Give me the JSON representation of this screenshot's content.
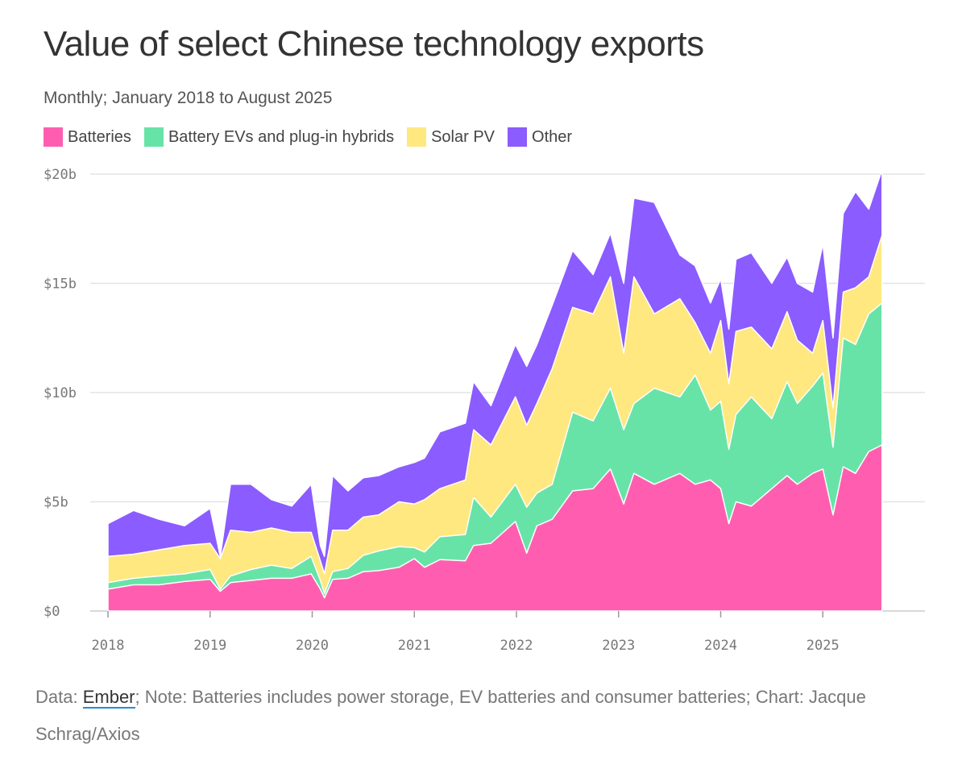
{
  "title": "Value of select Chinese technology exports",
  "subtitle": "Monthly; January 2018 to August 2025",
  "footer": {
    "prefix": "Data: ",
    "source_link": "Ember",
    "rest": "; Note: Batteries includes power storage, EV batteries and consumer batteries; Chart: Jacque Schrag/Axios"
  },
  "chart_data": {
    "type": "area",
    "stacked": true,
    "title": "Value of select Chinese technology exports",
    "subtitle": "Monthly; January 2018 to August 2025",
    "x_range": [
      "2018-01",
      "2025-08"
    ],
    "y_range": [
      0,
      20
    ],
    "y_unit": "$ billion",
    "y_ticks": [
      "$0",
      "$5b",
      "$10b",
      "$15b",
      "$20b"
    ],
    "y_tick_values": [
      0,
      5,
      10,
      15,
      20
    ],
    "x_ticks": [
      "2018",
      "2019",
      "2020",
      "2021",
      "2022",
      "2023",
      "2024",
      "2025"
    ],
    "x_tick_values": [
      2018,
      2019,
      2020,
      2021,
      2022,
      2023,
      2024,
      2025
    ],
    "grid": true,
    "legend_position": "top-left",
    "series": [
      {
        "name": "Batteries",
        "color": "#ff5eb0",
        "points": [
          [
            2018.0,
            1.0
          ],
          [
            2018.25,
            1.2
          ],
          [
            2018.5,
            1.2
          ],
          [
            2018.75,
            1.35
          ],
          [
            2019.0,
            1.45
          ],
          [
            2019.1,
            0.9
          ],
          [
            2019.2,
            1.3
          ],
          [
            2019.4,
            1.4
          ],
          [
            2019.6,
            1.5
          ],
          [
            2019.8,
            1.5
          ],
          [
            2019.99,
            1.7
          ],
          [
            2020.08,
            1.0
          ],
          [
            2020.12,
            0.6
          ],
          [
            2020.2,
            1.45
          ],
          [
            2020.35,
            1.5
          ],
          [
            2020.5,
            1.8
          ],
          [
            2020.65,
            1.85
          ],
          [
            2020.85,
            2.0
          ],
          [
            2021.0,
            2.4
          ],
          [
            2021.1,
            2.0
          ],
          [
            2021.25,
            2.35
          ],
          [
            2021.5,
            2.3
          ],
          [
            2021.58,
            3.0
          ],
          [
            2021.75,
            3.1
          ],
          [
            2021.99,
            4.1
          ],
          [
            2022.1,
            2.65
          ],
          [
            2022.2,
            3.9
          ],
          [
            2022.35,
            4.2
          ],
          [
            2022.55,
            5.5
          ],
          [
            2022.75,
            5.6
          ],
          [
            2022.92,
            6.5
          ],
          [
            2023.05,
            4.9
          ],
          [
            2023.15,
            6.3
          ],
          [
            2023.35,
            5.8
          ],
          [
            2023.6,
            6.3
          ],
          [
            2023.75,
            5.8
          ],
          [
            2023.9,
            6.0
          ],
          [
            2024.0,
            5.6
          ],
          [
            2024.08,
            4.0
          ],
          [
            2024.15,
            5.0
          ],
          [
            2024.3,
            4.8
          ],
          [
            2024.5,
            5.6
          ],
          [
            2024.65,
            6.2
          ],
          [
            2024.75,
            5.8
          ],
          [
            2024.9,
            6.3
          ],
          [
            2025.0,
            6.5
          ],
          [
            2025.1,
            4.4
          ],
          [
            2025.2,
            6.6
          ],
          [
            2025.32,
            6.3
          ],
          [
            2025.45,
            7.3
          ],
          [
            2025.58,
            7.6
          ]
        ]
      },
      {
        "name": "Battery EVs and plug-in hybrids",
        "color": "#68e3a8",
        "points": [
          [
            2018.0,
            1.3
          ],
          [
            2018.25,
            1.5
          ],
          [
            2018.5,
            1.6
          ],
          [
            2018.75,
            1.7
          ],
          [
            2019.0,
            1.9
          ],
          [
            2019.1,
            1.0
          ],
          [
            2019.2,
            1.6
          ],
          [
            2019.4,
            1.9
          ],
          [
            2019.6,
            2.1
          ],
          [
            2019.8,
            1.95
          ],
          [
            2019.99,
            2.5
          ],
          [
            2020.08,
            1.4
          ],
          [
            2020.12,
            0.8
          ],
          [
            2020.2,
            1.8
          ],
          [
            2020.35,
            1.95
          ],
          [
            2020.5,
            2.55
          ],
          [
            2020.65,
            2.75
          ],
          [
            2020.85,
            2.95
          ],
          [
            2021.0,
            2.9
          ],
          [
            2021.1,
            2.7
          ],
          [
            2021.25,
            3.4
          ],
          [
            2021.5,
            3.5
          ],
          [
            2021.58,
            5.2
          ],
          [
            2021.75,
            4.3
          ],
          [
            2021.99,
            5.8
          ],
          [
            2022.1,
            4.75
          ],
          [
            2022.2,
            5.4
          ],
          [
            2022.35,
            5.8
          ],
          [
            2022.55,
            9.1
          ],
          [
            2022.75,
            8.7
          ],
          [
            2022.92,
            10.2
          ],
          [
            2023.05,
            8.3
          ],
          [
            2023.15,
            9.5
          ],
          [
            2023.35,
            10.2
          ],
          [
            2023.6,
            9.8
          ],
          [
            2023.75,
            10.8
          ],
          [
            2023.9,
            9.2
          ],
          [
            2024.0,
            9.6
          ],
          [
            2024.08,
            7.4
          ],
          [
            2024.15,
            9.0
          ],
          [
            2024.3,
            9.8
          ],
          [
            2024.5,
            8.8
          ],
          [
            2024.65,
            10.5
          ],
          [
            2024.75,
            9.5
          ],
          [
            2024.9,
            10.3
          ],
          [
            2025.0,
            10.9
          ],
          [
            2025.1,
            7.5
          ],
          [
            2025.2,
            12.5
          ],
          [
            2025.32,
            12.2
          ],
          [
            2025.45,
            13.6
          ],
          [
            2025.58,
            14.1
          ]
        ]
      },
      {
        "name": "Solar PV",
        "color": "#ffe880",
        "points": [
          [
            2018.0,
            2.5
          ],
          [
            2018.25,
            2.6
          ],
          [
            2018.5,
            2.8
          ],
          [
            2018.75,
            3.0
          ],
          [
            2019.0,
            3.1
          ],
          [
            2019.1,
            2.4
          ],
          [
            2019.2,
            3.7
          ],
          [
            2019.4,
            3.6
          ],
          [
            2019.6,
            3.8
          ],
          [
            2019.8,
            3.6
          ],
          [
            2019.99,
            3.6
          ],
          [
            2020.08,
            2.3
          ],
          [
            2020.12,
            1.7
          ],
          [
            2020.2,
            3.7
          ],
          [
            2020.35,
            3.7
          ],
          [
            2020.5,
            4.3
          ],
          [
            2020.65,
            4.4
          ],
          [
            2020.85,
            5.0
          ],
          [
            2021.0,
            4.9
          ],
          [
            2021.1,
            5.1
          ],
          [
            2021.25,
            5.6
          ],
          [
            2021.5,
            6.0
          ],
          [
            2021.58,
            8.3
          ],
          [
            2021.75,
            7.6
          ],
          [
            2021.99,
            9.8
          ],
          [
            2022.1,
            8.5
          ],
          [
            2022.2,
            9.5
          ],
          [
            2022.35,
            11.1
          ],
          [
            2022.55,
            13.9
          ],
          [
            2022.75,
            13.6
          ],
          [
            2022.92,
            15.3
          ],
          [
            2023.05,
            11.8
          ],
          [
            2023.15,
            15.3
          ],
          [
            2023.35,
            13.6
          ],
          [
            2023.6,
            14.3
          ],
          [
            2023.75,
            13.2
          ],
          [
            2023.9,
            11.8
          ],
          [
            2024.0,
            13.3
          ],
          [
            2024.08,
            10.4
          ],
          [
            2024.15,
            12.8
          ],
          [
            2024.3,
            13.0
          ],
          [
            2024.5,
            12.0
          ],
          [
            2024.65,
            13.7
          ],
          [
            2024.75,
            12.4
          ],
          [
            2024.9,
            11.8
          ],
          [
            2025.0,
            13.3
          ],
          [
            2025.1,
            9.3
          ],
          [
            2025.2,
            14.6
          ],
          [
            2025.32,
            14.8
          ],
          [
            2025.45,
            15.3
          ],
          [
            2025.58,
            17.2
          ]
        ]
      },
      {
        "name": "Other",
        "color": "#8b5cff",
        "points": [
          [
            2018.0,
            4.0
          ],
          [
            2018.25,
            4.6
          ],
          [
            2018.5,
            4.2
          ],
          [
            2018.75,
            3.9
          ],
          [
            2019.0,
            4.7
          ],
          [
            2019.1,
            2.5
          ],
          [
            2019.2,
            5.8
          ],
          [
            2019.4,
            5.8
          ],
          [
            2019.6,
            5.1
          ],
          [
            2019.8,
            4.8
          ],
          [
            2019.99,
            5.8
          ],
          [
            2020.08,
            3.0
          ],
          [
            2020.12,
            2.5
          ],
          [
            2020.2,
            6.2
          ],
          [
            2020.35,
            5.5
          ],
          [
            2020.5,
            6.1
          ],
          [
            2020.65,
            6.2
          ],
          [
            2020.85,
            6.6
          ],
          [
            2021.0,
            6.8
          ],
          [
            2021.1,
            7.0
          ],
          [
            2021.25,
            8.2
          ],
          [
            2021.5,
            8.6
          ],
          [
            2021.58,
            10.5
          ],
          [
            2021.75,
            9.4
          ],
          [
            2021.99,
            12.2
          ],
          [
            2022.1,
            11.2
          ],
          [
            2022.2,
            12.2
          ],
          [
            2022.35,
            14.0
          ],
          [
            2022.55,
            16.5
          ],
          [
            2022.75,
            15.4
          ],
          [
            2022.92,
            17.3
          ],
          [
            2023.05,
            15.0
          ],
          [
            2023.15,
            18.9
          ],
          [
            2023.35,
            18.7
          ],
          [
            2023.6,
            16.3
          ],
          [
            2023.75,
            15.8
          ],
          [
            2023.9,
            14.1
          ],
          [
            2024.0,
            15.2
          ],
          [
            2024.08,
            12.9
          ],
          [
            2024.15,
            16.1
          ],
          [
            2024.3,
            16.4
          ],
          [
            2024.5,
            15.0
          ],
          [
            2024.65,
            16.2
          ],
          [
            2024.75,
            15.0
          ],
          [
            2024.9,
            14.6
          ],
          [
            2025.0,
            16.8
          ],
          [
            2025.1,
            12.5
          ],
          [
            2025.2,
            18.2
          ],
          [
            2025.32,
            19.2
          ],
          [
            2025.45,
            18.4
          ],
          [
            2025.58,
            20.2
          ]
        ]
      }
    ]
  }
}
